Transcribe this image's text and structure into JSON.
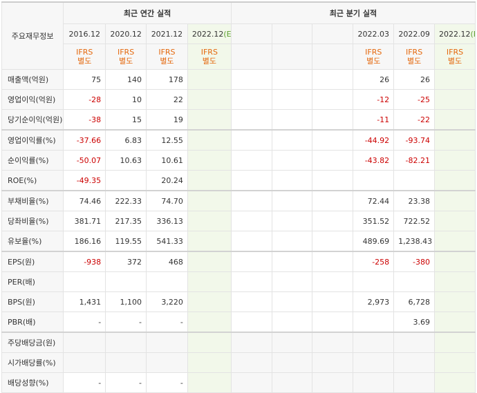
{
  "header": {
    "corner_label": "주요재무정보",
    "annual_group": "최근 연간 실적",
    "quarter_group": "최근 분기 실적",
    "annual_periods": [
      "2016.12",
      "2020.12",
      "2021.12",
      "2022.12"
    ],
    "quarter_periods": [
      "2022.03",
      "2022.09",
      "2022.12"
    ],
    "estimate_mark": "(E)",
    "ifrs_line1": "IFRS",
    "ifrs_line2": "별도"
  },
  "rows": [
    {
      "label": "매출액(억원)",
      "annual": [
        "75",
        "140",
        "178",
        ""
      ],
      "quarter": [
        "26",
        "26",
        ""
      ]
    },
    {
      "label": "영업이익(억원)",
      "annual": [
        "-28",
        "10",
        "22",
        ""
      ],
      "quarter": [
        "-12",
        "-25",
        ""
      ]
    },
    {
      "label": "당기순이익(억원)",
      "annual": [
        "-38",
        "15",
        "19",
        ""
      ],
      "quarter": [
        "-11",
        "-22",
        ""
      ]
    },
    {
      "label": "영업이익률(%)",
      "annual": [
        "-37.66",
        "6.83",
        "12.55",
        ""
      ],
      "quarter": [
        "-44.92",
        "-93.74",
        ""
      ]
    },
    {
      "label": "순이익률(%)",
      "annual": [
        "-50.07",
        "10.63",
        "10.61",
        ""
      ],
      "quarter": [
        "-43.82",
        "-82.21",
        ""
      ]
    },
    {
      "label": "ROE(%)",
      "annual": [
        "-49.35",
        "",
        "20.24",
        ""
      ],
      "quarter": [
        "",
        "",
        ""
      ]
    },
    {
      "label": "부채비율(%)",
      "annual": [
        "74.46",
        "222.33",
        "74.70",
        ""
      ],
      "quarter": [
        "72.44",
        "23.38",
        ""
      ]
    },
    {
      "label": "당좌비율(%)",
      "annual": [
        "381.71",
        "217.35",
        "336.13",
        ""
      ],
      "quarter": [
        "351.52",
        "722.52",
        ""
      ]
    },
    {
      "label": "유보율(%)",
      "annual": [
        "186.16",
        "119.55",
        "541.33",
        ""
      ],
      "quarter": [
        "489.69",
        "1,238.43",
        ""
      ]
    },
    {
      "label": "EPS(원)",
      "annual": [
        "-938",
        "372",
        "468",
        ""
      ],
      "quarter": [
        "-258",
        "-380",
        ""
      ]
    },
    {
      "label": "PER(배)",
      "annual": [
        "",
        "",
        "",
        ""
      ],
      "quarter": [
        "",
        "",
        ""
      ]
    },
    {
      "label": "BPS(원)",
      "annual": [
        "1,431",
        "1,100",
        "3,220",
        ""
      ],
      "quarter": [
        "2,973",
        "6,728",
        ""
      ]
    },
    {
      "label": "PBR(배)",
      "annual": [
        "-",
        "-",
        "-",
        ""
      ],
      "quarter": [
        "",
        "3.69",
        ""
      ]
    },
    {
      "label": "주당배당금(원)",
      "annual": [
        "",
        "",
        "",
        ""
      ],
      "quarter": [
        "",
        "",
        ""
      ]
    },
    {
      "label": "시가배당률(%)",
      "annual": [
        "",
        "",
        "",
        ""
      ],
      "quarter": [
        "",
        "",
        ""
      ]
    },
    {
      "label": "배당성향(%)",
      "annual": [
        "-",
        "-",
        "-",
        ""
      ],
      "quarter": [
        "",
        "",
        ""
      ]
    }
  ],
  "colors": {
    "negative": "#cc0000",
    "ifrs": "#e4680d",
    "estimate_bg": "#f5faf0",
    "estimate_mark": "#5a9e2c"
  }
}
